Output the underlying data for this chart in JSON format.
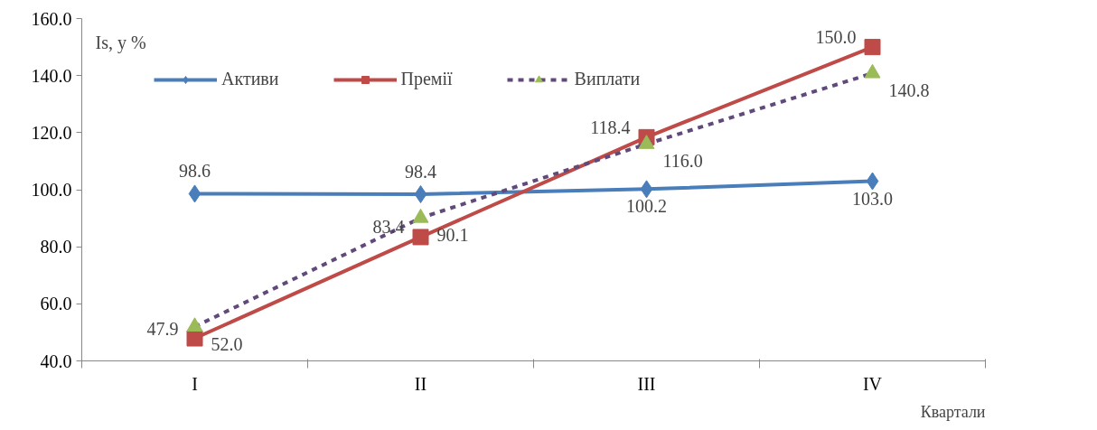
{
  "chart_data": {
    "type": "line",
    "ylabel": "Is, у %",
    "xlabel": "Квартали",
    "categories": [
      "I",
      "II",
      "III",
      "IV"
    ],
    "ylim": [
      40,
      160
    ],
    "yticks": [
      {
        "value": 40,
        "label": "40.0"
      },
      {
        "value": 60,
        "label": "60.0"
      },
      {
        "value": 80,
        "label": "80.0"
      },
      {
        "value": 100,
        "label": "100.0"
      },
      {
        "value": 120,
        "label": "120.0"
      },
      {
        "value": 140,
        "label": "140.0"
      },
      {
        "value": 160,
        "label": "160.0"
      }
    ],
    "grid": false,
    "legend": "top",
    "series": [
      {
        "name": "Активи",
        "color": "#4a7ebb",
        "values": [
          98.6,
          98.4,
          100.2,
          103.0
        ],
        "value_labels": [
          "98.6",
          "98.4",
          "100.2",
          "103.0"
        ],
        "marker": "diamond",
        "line_style": "solid"
      },
      {
        "name": "Премії",
        "color": "#be4b48",
        "values": [
          47.9,
          83.4,
          118.4,
          150.0
        ],
        "value_labels": [
          "47.9",
          "83.4",
          "118.4",
          "150.0"
        ],
        "marker": "square",
        "line_style": "solid"
      },
      {
        "name": "Виплати",
        "color": "#9bbb59",
        "values": [
          52.0,
          90.1,
          116.0,
          140.8
        ],
        "value_labels": [
          "52.0",
          "90.1",
          "116.0",
          "140.8"
        ],
        "marker": "triangle",
        "line_style": "dashed"
      }
    ]
  }
}
